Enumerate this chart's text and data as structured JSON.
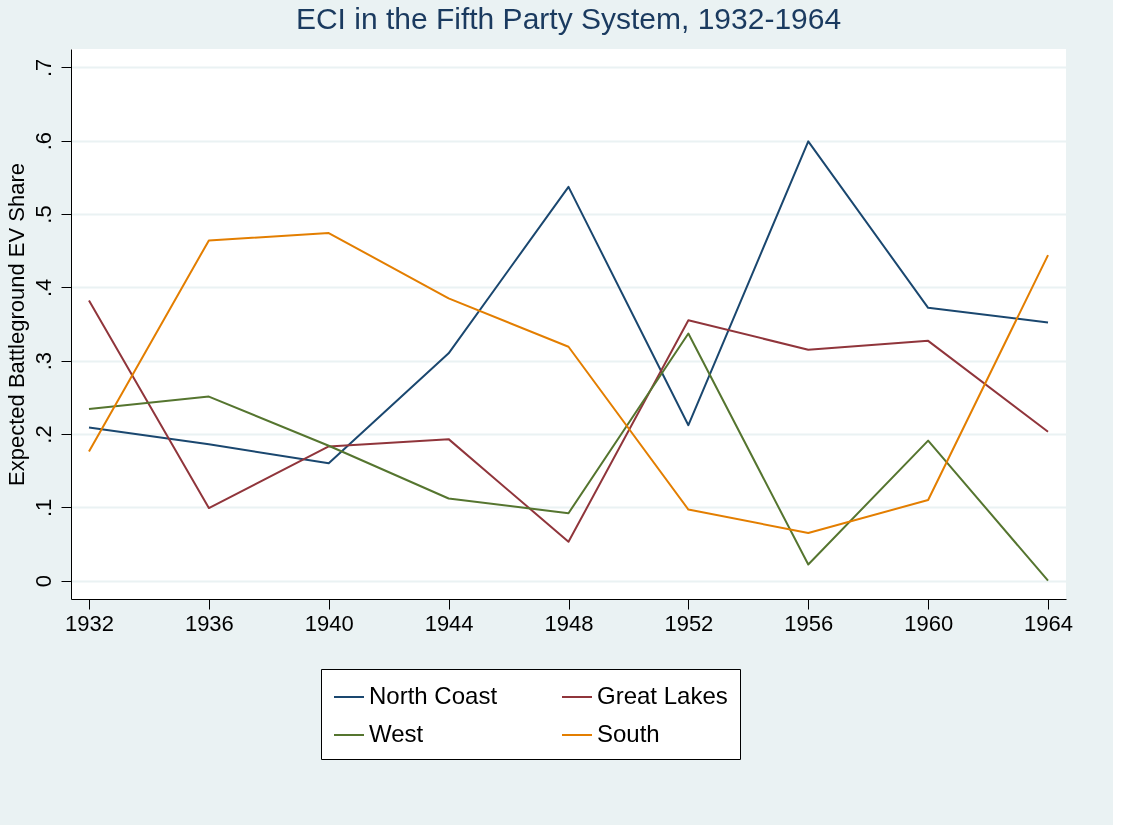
{
  "chart_data": {
    "type": "line",
    "title": "ECI in the Fifth Party System, 1932-1964",
    "ylabel": "Expected Battleground EV Share",
    "x": [
      1932,
      1936,
      1940,
      1944,
      1948,
      1952,
      1956,
      1960,
      1964
    ],
    "series": [
      {
        "name": "North Coast",
        "color": "#1a476f",
        "values": [
          0.209,
          0.186,
          0.16,
          0.31,
          0.537,
          0.212,
          0.599,
          0.372,
          0.352
        ]
      },
      {
        "name": "Great Lakes",
        "color": "#90353b",
        "values": [
          0.382,
          0.099,
          0.183,
          0.193,
          0.053,
          0.355,
          0.315,
          0.327,
          0.203
        ]
      },
      {
        "name": "West",
        "color": "#55752f",
        "values": [
          0.234,
          0.251,
          0.184,
          0.112,
          0.092,
          0.337,
          0.022,
          0.191,
          0.0
        ]
      },
      {
        "name": "South",
        "color": "#e37e00",
        "values": [
          0.176,
          0.464,
          0.474,
          0.385,
          0.319,
          0.097,
          0.065,
          0.11,
          0.444
        ]
      }
    ],
    "xlim": [
      1931.4,
      1964.6
    ],
    "xticks": [
      1932,
      1936,
      1940,
      1944,
      1948,
      1952,
      1956,
      1960,
      1964
    ],
    "ylim": [
      -0.025,
      0.725
    ],
    "yticks": [
      0,
      {
        "value": 0.1,
        "label": ".1"
      },
      {
        "value": 0.2,
        "label": ".2"
      },
      {
        "value": 0.3,
        "label": ".3"
      },
      {
        "value": 0.4,
        "label": ".4"
      },
      {
        "value": 0.5,
        "label": ".5"
      },
      {
        "value": 0.6,
        "label": ".6"
      },
      {
        "value": 0.7,
        "label": ".7"
      }
    ],
    "grid": "y",
    "legend": "bottom",
    "marker": "none",
    "line_style": "solid"
  }
}
